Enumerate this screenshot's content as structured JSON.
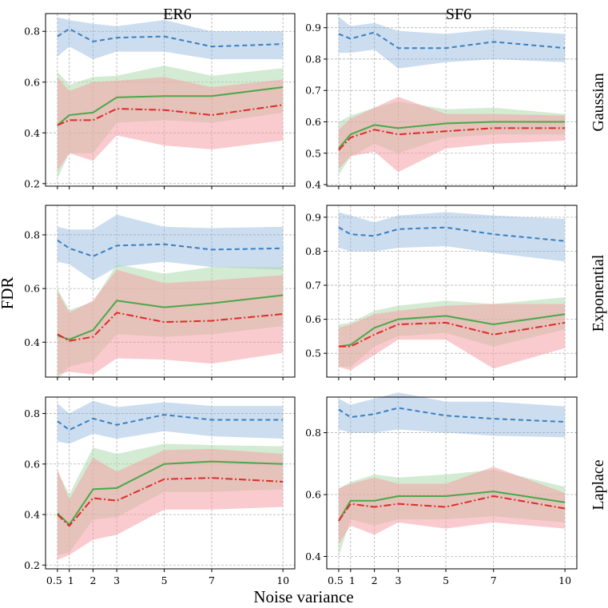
{
  "colors": {
    "blue": "#3a7fc0",
    "green": "#4aa84a",
    "red": "#dd2b2b",
    "blue_band": "#8fb3dc",
    "green_band": "#a8d8a5",
    "red_band": "#f4a0a6"
  },
  "figure": {
    "xlabel": "Noise variance",
    "ylabel": "FDR",
    "col_titles": [
      "ER6",
      "SF6"
    ],
    "row_titles": [
      "Gaussian",
      "Exponential",
      "Laplace"
    ]
  },
  "chart_data": [
    {
      "type": "line",
      "title": "ER6",
      "row": "Gaussian",
      "x": [
        0.5,
        1,
        2,
        3,
        5,
        7,
        10
      ],
      "xlim": [
        0,
        10.5
      ],
      "ylim": [
        0.19,
        0.87
      ],
      "yticks": [
        0.2,
        0.4,
        0.6,
        0.8
      ],
      "ytick_labels": [
        "0.2",
        "0.4",
        "0.6",
        "0.8"
      ],
      "xticks": [
        0.5,
        1,
        2,
        3,
        5,
        7,
        10
      ],
      "xtick_labels": [],
      "series": [
        {
          "name": "blue",
          "style": "dashed",
          "values": [
            0.78,
            0.81,
            0.76,
            0.775,
            0.78,
            0.74,
            0.75
          ],
          "lower": [
            0.7,
            0.74,
            0.69,
            0.72,
            0.72,
            0.69,
            0.69
          ],
          "upper": [
            0.855,
            0.845,
            0.83,
            0.82,
            0.845,
            0.8,
            0.8
          ]
        },
        {
          "name": "green",
          "style": "solid",
          "values": [
            0.43,
            0.47,
            0.48,
            0.54,
            0.545,
            0.545,
            0.58
          ],
          "lower": [
            0.22,
            0.32,
            0.32,
            0.44,
            0.45,
            0.44,
            0.48
          ],
          "upper": [
            0.64,
            0.59,
            0.62,
            0.625,
            0.665,
            0.625,
            0.655
          ]
        },
        {
          "name": "red",
          "style": "dashdot",
          "values": [
            0.43,
            0.45,
            0.45,
            0.495,
            0.49,
            0.47,
            0.51
          ],
          "lower": [
            0.25,
            0.32,
            0.29,
            0.39,
            0.35,
            0.335,
            0.37
          ],
          "upper": [
            0.62,
            0.565,
            0.6,
            0.605,
            0.62,
            0.58,
            0.61
          ]
        }
      ]
    },
    {
      "type": "line",
      "title": "SF6",
      "row": "Gaussian",
      "x": [
        0.5,
        1,
        2,
        3,
        5,
        7,
        10
      ],
      "xlim": [
        0,
        10.5
      ],
      "ylim": [
        0.395,
        0.945
      ],
      "yticks": [
        0.4,
        0.5,
        0.6,
        0.7,
        0.8,
        0.9
      ],
      "ytick_labels": [
        "0.4",
        "0.5",
        "0.6",
        "0.7",
        "0.8",
        "0.9"
      ],
      "xticks": [
        0.5,
        1,
        2,
        3,
        5,
        7,
        10
      ],
      "xtick_labels": [],
      "series": [
        {
          "name": "blue",
          "style": "dashed",
          "values": [
            0.88,
            0.865,
            0.885,
            0.835,
            0.835,
            0.855,
            0.835
          ],
          "lower": [
            0.82,
            0.82,
            0.83,
            0.77,
            0.79,
            0.8,
            0.79
          ],
          "upper": [
            0.935,
            0.905,
            0.915,
            0.89,
            0.88,
            0.895,
            0.88
          ]
        },
        {
          "name": "green",
          "style": "solid",
          "values": [
            0.515,
            0.56,
            0.59,
            0.58,
            0.595,
            0.6,
            0.6
          ],
          "lower": [
            0.43,
            0.49,
            0.53,
            0.5,
            0.55,
            0.56,
            0.56
          ],
          "upper": [
            0.6,
            0.62,
            0.645,
            0.665,
            0.64,
            0.645,
            0.625
          ]
        },
        {
          "name": "red",
          "style": "dashdot",
          "values": [
            0.51,
            0.55,
            0.575,
            0.56,
            0.57,
            0.58,
            0.58
          ],
          "lower": [
            0.45,
            0.49,
            0.505,
            0.44,
            0.515,
            0.53,
            0.54
          ],
          "upper": [
            0.575,
            0.61,
            0.645,
            0.68,
            0.625,
            0.625,
            0.62
          ]
        }
      ]
    },
    {
      "type": "line",
      "title": "ER6",
      "row": "Exponential",
      "x": [
        0.5,
        1,
        2,
        3,
        5,
        7,
        10
      ],
      "xlim": [
        0,
        10.5
      ],
      "ylim": [
        0.27,
        0.91
      ],
      "yticks": [
        0.4,
        0.6,
        0.8
      ],
      "ytick_labels": [
        "0.4",
        "0.6",
        "0.8"
      ],
      "xticks": [
        0.5,
        1,
        2,
        3,
        5,
        7,
        10
      ],
      "xtick_labels": [],
      "series": [
        {
          "name": "blue",
          "style": "dashed",
          "values": [
            0.78,
            0.75,
            0.72,
            0.76,
            0.765,
            0.745,
            0.75
          ],
          "lower": [
            0.7,
            0.69,
            0.63,
            0.68,
            0.7,
            0.68,
            0.67
          ],
          "upper": [
            0.83,
            0.82,
            0.82,
            0.875,
            0.83,
            0.825,
            0.83
          ]
        },
        {
          "name": "green",
          "style": "solid",
          "values": [
            0.425,
            0.41,
            0.445,
            0.555,
            0.53,
            0.545,
            0.575
          ],
          "lower": [
            0.26,
            0.31,
            0.33,
            0.43,
            0.42,
            0.43,
            0.46
          ],
          "upper": [
            0.6,
            0.52,
            0.55,
            0.69,
            0.655,
            0.68,
            0.68
          ]
        },
        {
          "name": "red",
          "style": "dashdot",
          "values": [
            0.43,
            0.405,
            0.42,
            0.51,
            0.475,
            0.48,
            0.505
          ],
          "lower": [
            0.28,
            0.29,
            0.28,
            0.34,
            0.335,
            0.32,
            0.36
          ],
          "upper": [
            0.59,
            0.51,
            0.555,
            0.67,
            0.62,
            0.63,
            0.65
          ]
        }
      ]
    },
    {
      "type": "line",
      "title": "SF6",
      "row": "Exponential",
      "x": [
        0.5,
        1,
        2,
        3,
        5,
        7,
        10
      ],
      "xlim": [
        0,
        10.5
      ],
      "ylim": [
        0.43,
        0.935
      ],
      "yticks": [
        0.5,
        0.6,
        0.7,
        0.8,
        0.9
      ],
      "ytick_labels": [
        "0.5",
        "0.6",
        "0.7",
        "0.8",
        "0.9"
      ],
      "xticks": [
        0.5,
        1,
        2,
        3,
        5,
        7,
        10
      ],
      "xtick_labels": [],
      "series": [
        {
          "name": "blue",
          "style": "dashed",
          "values": [
            0.87,
            0.85,
            0.845,
            0.865,
            0.87,
            0.85,
            0.83
          ],
          "lower": [
            0.81,
            0.8,
            0.8,
            0.81,
            0.815,
            0.795,
            0.77
          ],
          "upper": [
            0.915,
            0.905,
            0.885,
            0.905,
            0.915,
            0.905,
            0.895
          ]
        },
        {
          "name": "green",
          "style": "solid",
          "values": [
            0.52,
            0.525,
            0.575,
            0.6,
            0.61,
            0.585,
            0.615
          ],
          "lower": [
            0.46,
            0.46,
            0.52,
            0.55,
            0.56,
            0.52,
            0.57
          ],
          "upper": [
            0.585,
            0.59,
            0.625,
            0.64,
            0.655,
            0.645,
            0.665
          ]
        },
        {
          "name": "red",
          "style": "dashdot",
          "values": [
            0.52,
            0.52,
            0.555,
            0.585,
            0.59,
            0.555,
            0.59
          ],
          "lower": [
            0.46,
            0.45,
            0.495,
            0.54,
            0.54,
            0.455,
            0.515
          ],
          "upper": [
            0.575,
            0.585,
            0.615,
            0.625,
            0.64,
            0.645,
            0.645
          ]
        }
      ]
    },
    {
      "type": "line",
      "title": "ER6",
      "row": "Laplace",
      "x": [
        0.5,
        1,
        2,
        3,
        5,
        7,
        10
      ],
      "xlim": [
        0,
        10.5
      ],
      "ylim": [
        0.185,
        0.865
      ],
      "yticks": [
        0.2,
        0.4,
        0.6,
        0.8
      ],
      "ytick_labels": [
        "0.2",
        "0.4",
        "0.6",
        "0.8"
      ],
      "xticks": [
        0.5,
        1,
        2,
        3,
        5,
        7,
        10
      ],
      "xtick_labels": [
        "0.5",
        "1",
        "2",
        "3",
        "5",
        "7",
        "10"
      ],
      "series": [
        {
          "name": "blue",
          "style": "dashed",
          "values": [
            0.77,
            0.735,
            0.78,
            0.755,
            0.795,
            0.775,
            0.775
          ],
          "lower": [
            0.69,
            0.68,
            0.72,
            0.7,
            0.73,
            0.71,
            0.7
          ],
          "upper": [
            0.84,
            0.8,
            0.85,
            0.825,
            0.845,
            0.83,
            0.83
          ]
        },
        {
          "name": "green",
          "style": "solid",
          "values": [
            0.405,
            0.36,
            0.5,
            0.505,
            0.6,
            0.61,
            0.6
          ],
          "lower": [
            0.24,
            0.25,
            0.38,
            0.39,
            0.49,
            0.49,
            0.5
          ],
          "upper": [
            0.57,
            0.48,
            0.665,
            0.64,
            0.68,
            0.675,
            0.67
          ]
        },
        {
          "name": "red",
          "style": "dashdot",
          "values": [
            0.4,
            0.355,
            0.465,
            0.455,
            0.54,
            0.545,
            0.53
          ],
          "lower": [
            0.22,
            0.24,
            0.3,
            0.32,
            0.42,
            0.42,
            0.43
          ],
          "upper": [
            0.58,
            0.46,
            0.625,
            0.57,
            0.655,
            0.66,
            0.64
          ]
        }
      ]
    },
    {
      "type": "line",
      "title": "SF6",
      "row": "Laplace",
      "x": [
        0.5,
        1,
        2,
        3,
        5,
        7,
        10
      ],
      "xlim": [
        0,
        10.5
      ],
      "ylim": [
        0.36,
        0.915
      ],
      "yticks": [
        0.4,
        0.6,
        0.8
      ],
      "ytick_labels": [
        "0.4",
        "0.6",
        "0.8"
      ],
      "xticks": [
        0.5,
        1,
        2,
        3,
        5,
        7,
        10
      ],
      "xtick_labels": [
        "0.5",
        "1",
        "2",
        "3",
        "5",
        "7",
        "10"
      ],
      "series": [
        {
          "name": "blue",
          "style": "dashed",
          "values": [
            0.875,
            0.85,
            0.86,
            0.88,
            0.855,
            0.845,
            0.835
          ],
          "lower": [
            0.81,
            0.8,
            0.8,
            0.81,
            0.8,
            0.79,
            0.785
          ],
          "upper": [
            0.91,
            0.89,
            0.91,
            0.93,
            0.9,
            0.9,
            0.885
          ]
        },
        {
          "name": "green",
          "style": "solid",
          "values": [
            0.515,
            0.58,
            0.58,
            0.595,
            0.595,
            0.61,
            0.575
          ],
          "lower": [
            0.4,
            0.52,
            0.5,
            0.52,
            0.52,
            0.53,
            0.51
          ],
          "upper": [
            0.62,
            0.64,
            0.665,
            0.655,
            0.665,
            0.68,
            0.625
          ]
        },
        {
          "name": "red",
          "style": "dashdot",
          "values": [
            0.515,
            0.57,
            0.56,
            0.57,
            0.56,
            0.595,
            0.555
          ],
          "lower": [
            0.44,
            0.5,
            0.47,
            0.51,
            0.49,
            0.51,
            0.49
          ],
          "upper": [
            0.62,
            0.635,
            0.655,
            0.635,
            0.635,
            0.69,
            0.605
          ]
        }
      ]
    }
  ]
}
